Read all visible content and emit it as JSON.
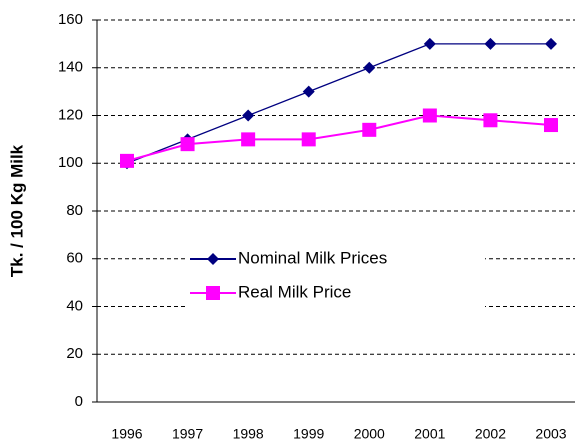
{
  "chart_data": {
    "type": "line",
    "y_label": "Tk. / 100 Kg Milk",
    "categories": [
      "1996",
      "1997",
      "1998",
      "1999",
      "2000",
      "2001",
      "2002",
      "2003"
    ],
    "series": [
      {
        "name": "Nominal Milk Prices",
        "color": "#000080",
        "marker": "diamond",
        "values": [
          100,
          110,
          120,
          130,
          140,
          150,
          150,
          150
        ]
      },
      {
        "name": "Real Milk Price",
        "color": "#ff00ff",
        "marker": "square",
        "values": [
          101,
          108,
          110,
          110,
          114,
          120,
          118,
          116
        ]
      }
    ],
    "ylim": [
      0,
      160
    ],
    "yticks": [
      0,
      20,
      40,
      60,
      80,
      100,
      120,
      140,
      160
    ],
    "grid": true
  }
}
